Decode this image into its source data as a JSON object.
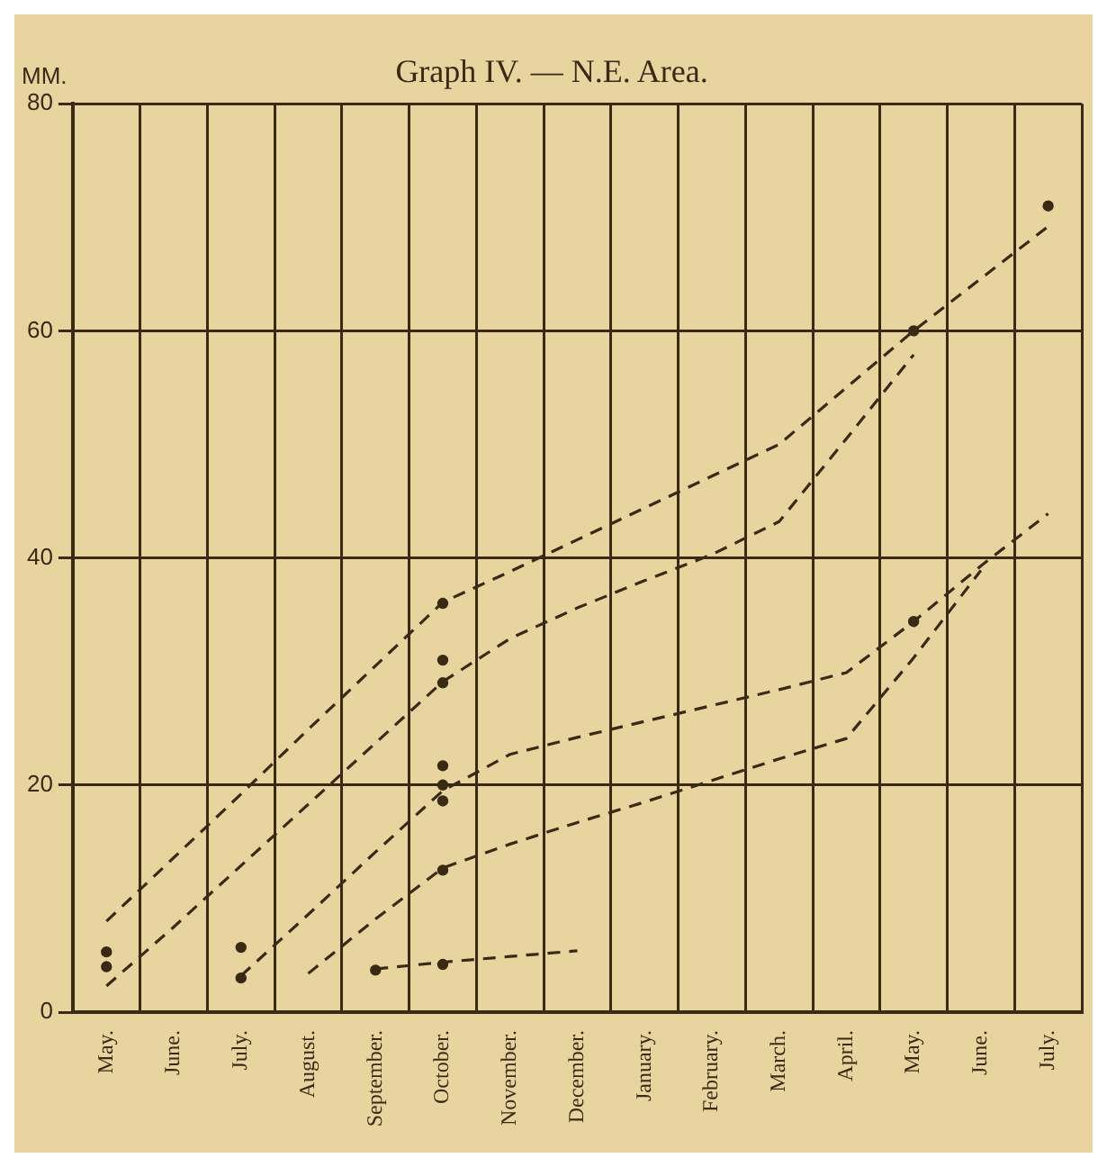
{
  "chart_data": {
    "type": "line",
    "title": "Graph IV. — N.E. Area.",
    "ylabel": "MM.",
    "categories": [
      "May.",
      "June.",
      "July.",
      "August.",
      "September.",
      "October.",
      "November.",
      "December.",
      "January.",
      "February.",
      "March.",
      "April.",
      "May.",
      "June.",
      "July."
    ],
    "ylim": [
      0,
      80
    ],
    "yticks": [
      0,
      20,
      40,
      60,
      80
    ],
    "grid": true,
    "legend": false,
    "series": [
      {
        "type": "line",
        "color": "#3a2a14",
        "line_style": "dashed",
        "marker": "none",
        "values": [
          8,
          13.6,
          19.2,
          24.9,
          30.5,
          36.1,
          38.8,
          41.6,
          44.4,
          47.2,
          50,
          55,
          60,
          64.6,
          69.2
        ]
      },
      {
        "type": "line",
        "color": "#3a2a14",
        "line_style": "dashed",
        "marker": "none",
        "values": [
          2.3,
          7.5,
          12.9,
          18.3,
          23.7,
          29.1,
          32.9,
          35.6,
          38,
          40.3,
          43.2,
          50.5,
          57.9,
          null,
          null
        ]
      },
      {
        "type": "line",
        "color": "#3a2a14",
        "line_style": "dashed",
        "marker": "none",
        "values": [
          null,
          null,
          3.2,
          8.6,
          14.1,
          19.5,
          22.7,
          24.2,
          25.6,
          27,
          28.4,
          29.9,
          34.4,
          39.3,
          43.9
        ]
      },
      {
        "type": "line",
        "color": "#3a2a14",
        "line_style": "dashed",
        "marker": "none",
        "values": [
          null,
          null,
          null,
          3.4,
          8.2,
          12.7,
          14.8,
          16.7,
          18.5,
          20.4,
          22.3,
          24.1,
          31.2,
          38.9,
          null
        ]
      },
      {
        "type": "line",
        "color": "#3a2a14",
        "line_style": "dashed",
        "marker": "none",
        "values": [
          null,
          null,
          null,
          null,
          3.8,
          4.4,
          4.9,
          5.4,
          null,
          null,
          null,
          null,
          null,
          null,
          null
        ]
      },
      {
        "type": "scatter",
        "color": "#3a2a14",
        "marker": "circle",
        "values": [
          5.3,
          null,
          3,
          null,
          3.7,
          4.2,
          null,
          null,
          null,
          null,
          null,
          null,
          60,
          null,
          71
        ]
      },
      {
        "type": "scatter",
        "color": "#3a2a14",
        "marker": "circle",
        "values": [
          4,
          null,
          5.7,
          null,
          null,
          36,
          null,
          null,
          null,
          null,
          null,
          null,
          34.4,
          null,
          null
        ]
      },
      {
        "type": "scatter",
        "color": "#3a2a14",
        "marker": "circle",
        "values": [
          null,
          null,
          null,
          null,
          null,
          31,
          null,
          null,
          null,
          null,
          null,
          null,
          null,
          null,
          null
        ]
      },
      {
        "type": "scatter",
        "color": "#3a2a14",
        "marker": "circle",
        "values": [
          null,
          null,
          null,
          null,
          null,
          29,
          null,
          null,
          null,
          null,
          null,
          null,
          null,
          null,
          null
        ]
      },
      {
        "type": "scatter",
        "color": "#3a2a14",
        "marker": "circle",
        "values": [
          null,
          null,
          null,
          null,
          null,
          20,
          null,
          null,
          null,
          null,
          null,
          null,
          null,
          null,
          null
        ]
      },
      {
        "type": "scatter",
        "color": "#3a2a14",
        "marker": "circle",
        "values": [
          null,
          null,
          null,
          null,
          null,
          18.6,
          null,
          null,
          null,
          null,
          null,
          null,
          null,
          null,
          null
        ]
      },
      {
        "type": "scatter",
        "color": "#3a2a14",
        "marker": "circle",
        "values": [
          null,
          null,
          null,
          null,
          null,
          21.7,
          null,
          null,
          null,
          null,
          null,
          null,
          null,
          null,
          null
        ]
      },
      {
        "type": "scatter",
        "color": "#3a2a14",
        "marker": "circle",
        "values": [
          null,
          null,
          null,
          null,
          null,
          12.5,
          null,
          null,
          null,
          null,
          null,
          null,
          null,
          null,
          null
        ]
      }
    ]
  }
}
